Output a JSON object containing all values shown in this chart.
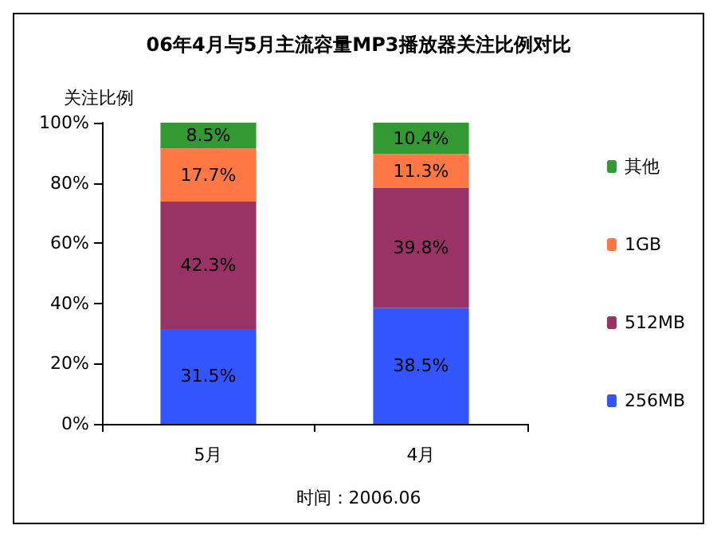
{
  "chart_data": {
    "type": "bar",
    "title": "06年4月与5月主流容量MP3播放器关注比例对比",
    "ylabel": "关注比例",
    "categories": [
      "5月",
      "4月"
    ],
    "stacked": true,
    "legend": "right",
    "grid": false,
    "ylim": [
      0,
      100
    ],
    "yticks": [
      {
        "value": 0,
        "label": "0%"
      },
      {
        "value": 20,
        "label": "20%"
      },
      {
        "value": 40,
        "label": "40%"
      },
      {
        "value": 60,
        "label": "60%"
      },
      {
        "value": 80,
        "label": "80%"
      },
      {
        "value": 100,
        "label": "100%"
      }
    ],
    "series": [
      {
        "name": "256MB",
        "color": "#3355ff",
        "values": [
          31.5,
          38.5
        ],
        "value_labels": [
          "31.5%",
          "38.5%"
        ]
      },
      {
        "name": "512MB",
        "color": "#993366",
        "values": [
          42.3,
          39.8
        ],
        "value_labels": [
          "42.3%",
          "39.8%"
        ]
      },
      {
        "name": "1GB",
        "color": "#ff7744",
        "values": [
          17.7,
          11.3
        ],
        "value_labels": [
          "17.7%",
          "11.3%"
        ]
      },
      {
        "name": "其他",
        "color": "#339933",
        "values": [
          8.5,
          10.4
        ],
        "value_labels": [
          "8.5%",
          "10.4%"
        ]
      }
    ],
    "annotations": [
      "时间：2006.06"
    ]
  }
}
